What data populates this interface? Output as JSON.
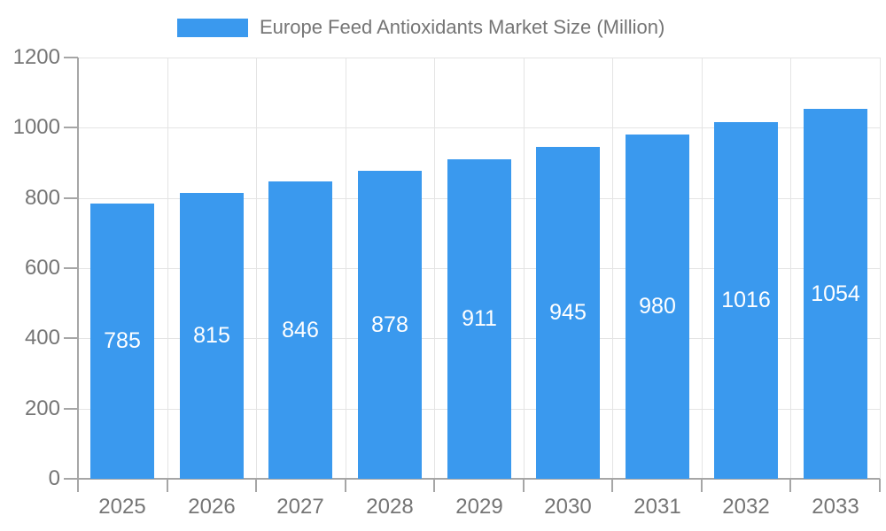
{
  "chart_data": {
    "type": "bar",
    "title": "Europe Feed Antioxidants Market Size (Million)",
    "legend_entries": [
      "Europe Feed Antioxidants Market Size (Million)"
    ],
    "legend_position": "top",
    "categories": [
      "2025",
      "2026",
      "2027",
      "2028",
      "2029",
      "2030",
      "2031",
      "2032",
      "2033"
    ],
    "values": [
      785,
      815,
      846,
      878,
      911,
      945,
      980,
      1016,
      1054
    ],
    "ylim": [
      0,
      1200
    ],
    "yticks": [
      0,
      200,
      400,
      600,
      800,
      1000,
      1200
    ],
    "grid": true,
    "colors": {
      "bar": "#3a99ee",
      "grid": "#e4e4e4",
      "axis": "#a6a6a6",
      "tick_label": "#757575",
      "legend_label": "#757575",
      "value_label": "#ffffff",
      "background": "#ffffff"
    }
  }
}
